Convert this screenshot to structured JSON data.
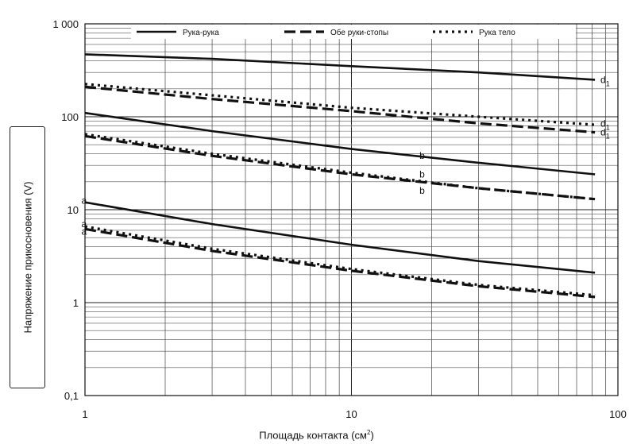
{
  "chart_data": {
    "type": "line",
    "xscale": "log",
    "yscale": "log",
    "xlim": [
      1,
      100
    ],
    "ylim": [
      0.1,
      1000
    ],
    "xlabel": "Площадь контакта",
    "xlabel_unit": "(см",
    "xlabel_unit_sup": "2",
    "xlabel_unit_close": ")",
    "ylabel": "Напряжение прикосновения (V)",
    "x_ticks": [
      1,
      10,
      100
    ],
    "x_tick_labels": [
      "1",
      "10",
      "100"
    ],
    "y_ticks": [
      0.1,
      1,
      10,
      100,
      1000
    ],
    "y_tick_labels": [
      "0,1",
      "1",
      "10",
      "100",
      "1 000"
    ],
    "grid": true,
    "legend_position": "top",
    "legend": [
      {
        "label": "Рука-рука",
        "style": "solid"
      },
      {
        "label": "Обе руки-стопы",
        "style": "dashed"
      },
      {
        "label": "Рука тело",
        "style": "dotted"
      }
    ],
    "series": [
      {
        "name": "Рука-рука",
        "style": "solid",
        "curve": "d",
        "x": [
          1,
          3,
          10,
          30,
          82
        ],
        "y": [
          470,
          420,
          350,
          300,
          250
        ]
      },
      {
        "name": "Рука-рука",
        "style": "solid",
        "curve": "b",
        "x": [
          1,
          3,
          10,
          30,
          82
        ],
        "y": [
          110,
          70,
          45,
          32,
          24
        ]
      },
      {
        "name": "Рука-рука",
        "style": "solid",
        "curve": "a",
        "x": [
          1,
          3,
          10,
          30,
          82
        ],
        "y": [
          12,
          7,
          4.2,
          2.8,
          2.1
        ]
      },
      {
        "name": "Обе руки-стопы",
        "style": "dashed",
        "curve": "d",
        "x": [
          1,
          3,
          10,
          30,
          82
        ],
        "y": [
          210,
          155,
          115,
          85,
          68
        ]
      },
      {
        "name": "Обе руки-стопы",
        "style": "dashed",
        "curve": "b",
        "x": [
          1,
          3,
          10,
          30,
          82
        ],
        "y": [
          62,
          38,
          24,
          17,
          13
        ]
      },
      {
        "name": "Обе руки-стопы",
        "style": "dashed",
        "curve": "a",
        "x": [
          1,
          3,
          10,
          30,
          82
        ],
        "y": [
          6.2,
          3.6,
          2.2,
          1.5,
          1.15
        ]
      },
      {
        "name": "Рука тело",
        "style": "dotted",
        "curve": "d",
        "x": [
          1,
          3,
          10,
          30,
          82
        ],
        "y": [
          225,
          170,
          125,
          100,
          82
        ]
      },
      {
        "name": "Рука тело",
        "style": "dotted",
        "curve": "b",
        "x": [
          1,
          3,
          10,
          30,
          82
        ],
        "y": [
          65,
          40,
          25,
          17,
          13
        ]
      },
      {
        "name": "Рука тело",
        "style": "dotted",
        "curve": "a",
        "x": [
          1,
          3,
          10,
          30,
          82
        ],
        "y": [
          6.6,
          3.8,
          2.3,
          1.55,
          1.2
        ]
      }
    ],
    "annotations": [
      {
        "text": "d",
        "sub": "1",
        "x": 86,
        "y": 250
      },
      {
        "text": "d",
        "sub": "1",
        "x": 86,
        "y": 85
      },
      {
        "text": "d",
        "sub": "1",
        "x": 86,
        "y": 68
      },
      {
        "text": "b",
        "x": 18,
        "y": 38
      },
      {
        "text": "b",
        "x": 18,
        "y": 24
      },
      {
        "text": "b",
        "x": 18,
        "y": 16
      },
      {
        "text": "a",
        "x": 0.97,
        "y": 12.5
      },
      {
        "text": "a",
        "x": 0.97,
        "y": 7
      },
      {
        "text": "a",
        "x": 0.97,
        "y": 5.8
      }
    ]
  }
}
